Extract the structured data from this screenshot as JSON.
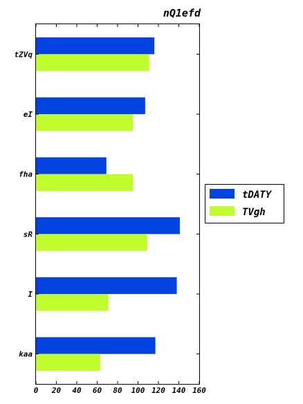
{
  "chart_data": {
    "type": "bar",
    "orientation": "horizontal",
    "title": "nQ1efd",
    "xlabel": "",
    "ylabel": "",
    "categories": [
      "kaa",
      "I",
      "sR",
      "fha",
      "eI",
      "tZVq"
    ],
    "series": [
      {
        "name": "tDATY",
        "color": "#0343df",
        "values": [
          117,
          138,
          141,
          69,
          107,
          116
        ]
      },
      {
        "name": "TVgh",
        "color": "#c0fb2d",
        "values": [
          63,
          71,
          109,
          95,
          95,
          111
        ]
      }
    ],
    "xlim": [
      0,
      160
    ],
    "xticks": [
      0,
      20,
      40,
      60,
      80,
      100,
      120,
      140,
      160
    ],
    "grid": false,
    "legend_position": "right"
  }
}
